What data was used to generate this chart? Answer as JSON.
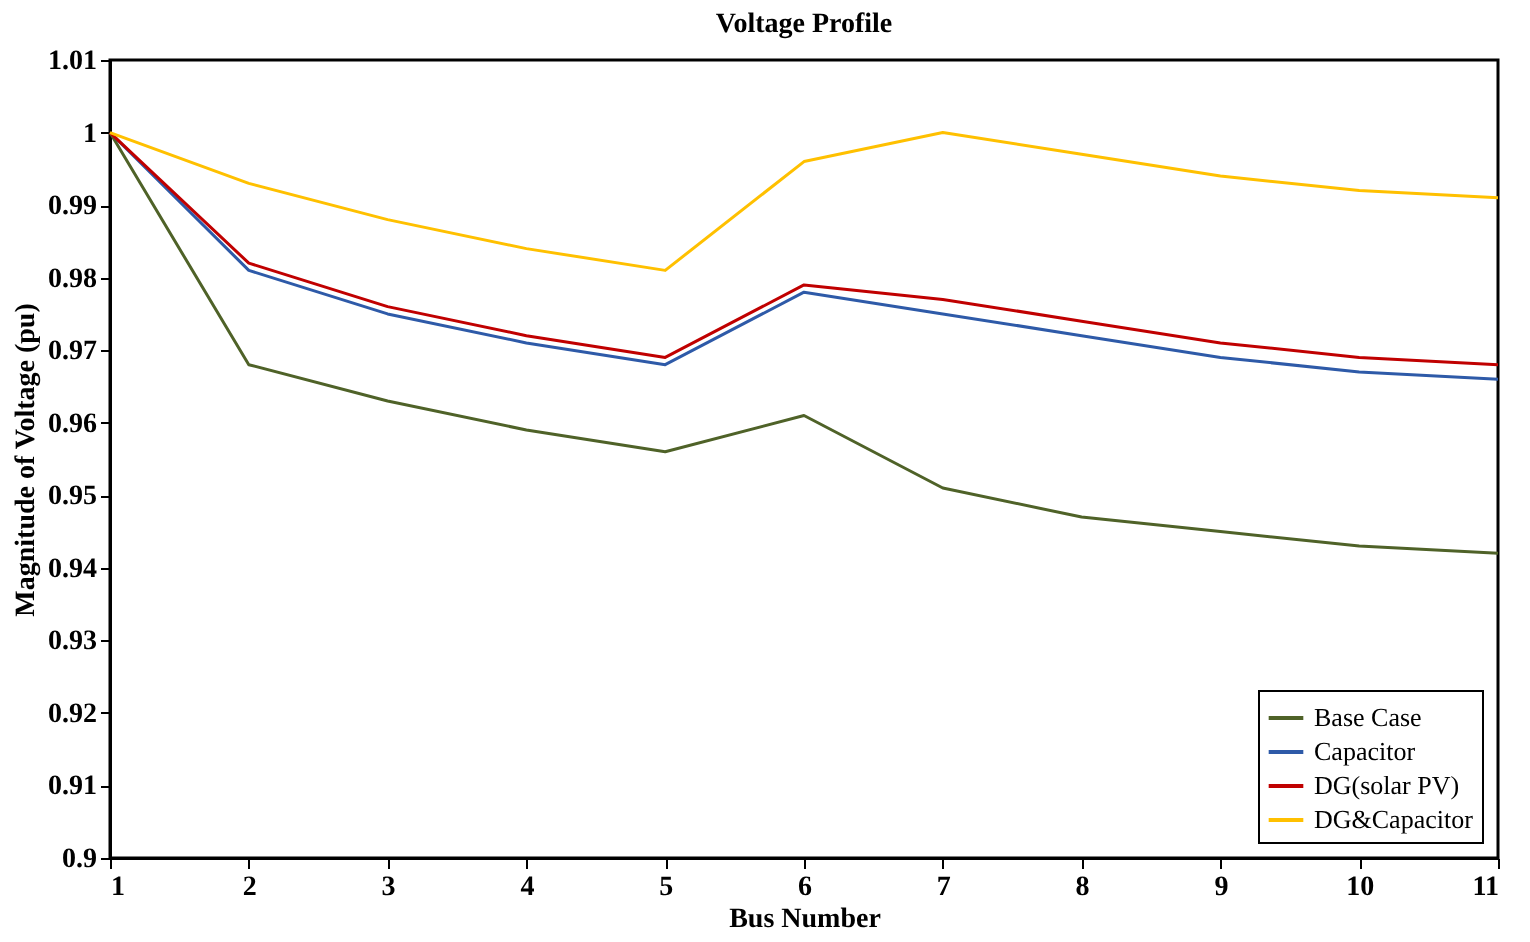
{
  "chart_data": {
    "type": "line",
    "title": "Voltage Profile",
    "xlabel": "Bus Number",
    "ylabel": "Magnitude of Voltage (pu)",
    "x": [
      1,
      2,
      3,
      4,
      5,
      6,
      7,
      8,
      9,
      10,
      11
    ],
    "series": [
      {
        "name": "Base Case",
        "color": "#4f6228",
        "values": [
          1.0,
          0.968,
          0.963,
          0.959,
          0.956,
          0.961,
          0.951,
          0.947,
          0.945,
          0.943,
          0.942
        ]
      },
      {
        "name": "Capacitor",
        "color": "#2e5aa8",
        "values": [
          1.0,
          0.981,
          0.975,
          0.971,
          0.968,
          0.978,
          0.975,
          0.972,
          0.969,
          0.967,
          0.966
        ]
      },
      {
        "name": "DG(solar PV)",
        "color": "#c00000",
        "values": [
          1.0,
          0.982,
          0.976,
          0.972,
          0.969,
          0.979,
          0.977,
          0.974,
          0.971,
          0.969,
          0.968
        ]
      },
      {
        "name": "DG&Capacitor",
        "color": "#ffc000",
        "values": [
          1.0,
          0.993,
          0.988,
          0.984,
          0.981,
          0.996,
          1.0,
          0.997,
          0.994,
          0.992,
          0.991
        ]
      }
    ],
    "xlim": [
      1,
      11
    ],
    "xticks": [
      1,
      2,
      3,
      4,
      5,
      6,
      7,
      8,
      9,
      10,
      11
    ],
    "ylim": [
      0.9,
      1.01
    ],
    "yticks": [
      0.9,
      0.91,
      0.92,
      0.93,
      0.94,
      0.95,
      0.96,
      0.97,
      0.98,
      0.99,
      1,
      1.01
    ],
    "grid": false,
    "legend": "bottom right",
    "marker": "none",
    "line_style": "solid"
  }
}
